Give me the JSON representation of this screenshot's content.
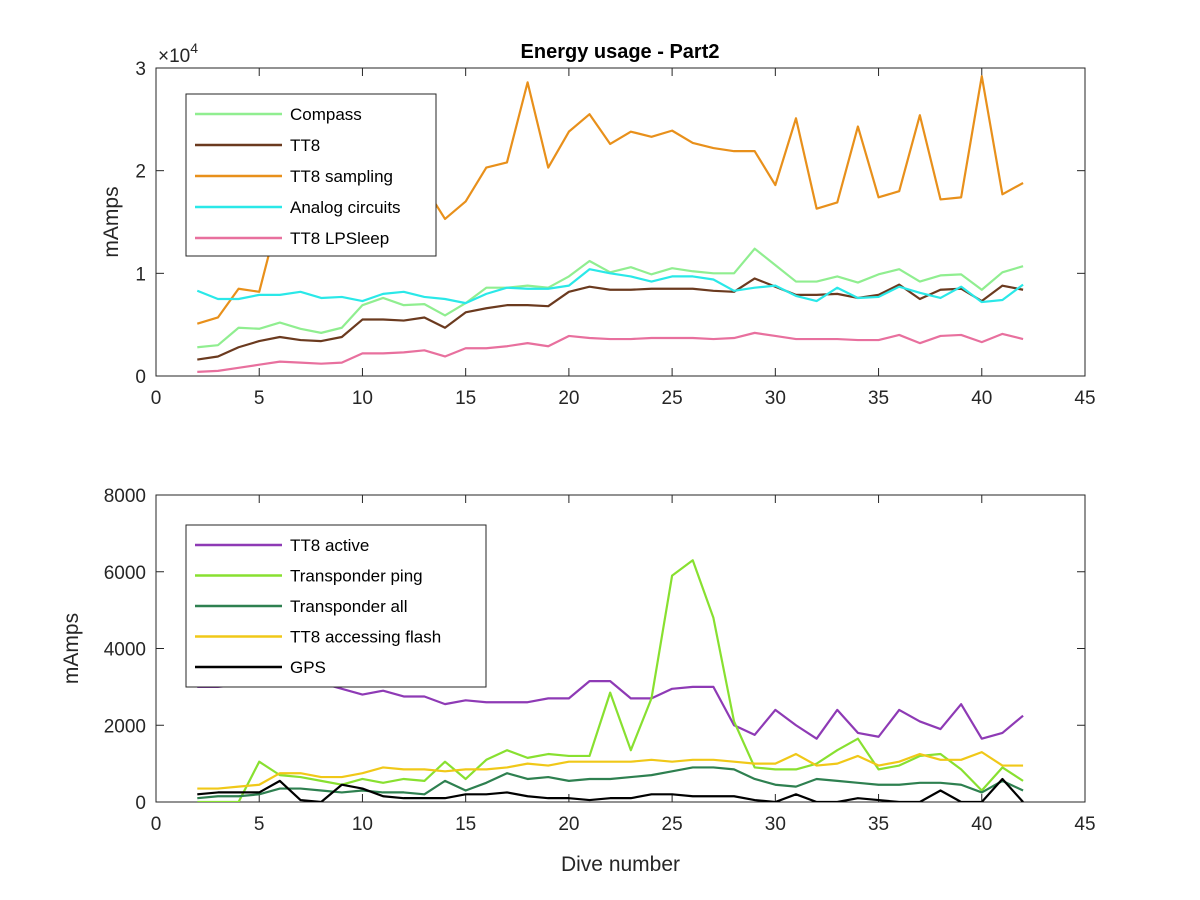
{
  "figure_title": "Energy usage - Part2",
  "chart_data": [
    {
      "type": "line",
      "title": "Energy usage - Part2",
      "xlabel": "",
      "ylabel": "mAmps",
      "xlim": [
        0,
        45
      ],
      "ylim": [
        0,
        30000
      ],
      "y_exponent_label": "×10",
      "y_exponent_power": "4",
      "xticks": [
        0,
        5,
        10,
        15,
        20,
        25,
        30,
        35,
        40,
        45
      ],
      "yticks": [
        0,
        10000,
        20000,
        30000
      ],
      "ytick_labels": [
        "0",
        "1",
        "2",
        "3"
      ],
      "grid": false,
      "legend_position": "top-left",
      "x": [
        2,
        3,
        4,
        5,
        6,
        7,
        8,
        9,
        10,
        11,
        12,
        13,
        14,
        15,
        16,
        17,
        18,
        19,
        20,
        21,
        22,
        23,
        24,
        25,
        26,
        27,
        28,
        29,
        30,
        31,
        32,
        33,
        34,
        35,
        36,
        37,
        38,
        39,
        40,
        41,
        42
      ],
      "series": [
        {
          "name": "Compass",
          "color": "#90ee90",
          "values": [
            2800,
            3000,
            4700,
            4600,
            5200,
            4600,
            4200,
            4700,
            6900,
            7600,
            6900,
            7000,
            5900,
            7100,
            8600,
            8600,
            8800,
            8600,
            9700,
            11200,
            10100,
            10600,
            9900,
            10500,
            10200,
            10000,
            10000,
            12400,
            10800,
            9200,
            9200,
            9700,
            9100,
            9900,
            10400,
            9200,
            9800,
            9900,
            8400,
            10100,
            10700
          ]
        },
        {
          "name": "TT8",
          "color": "#6b3a1f",
          "values": [
            1600,
            1900,
            2800,
            3400,
            3800,
            3500,
            3400,
            3800,
            5500,
            5500,
            5400,
            5700,
            4700,
            6200,
            6600,
            6900,
            6900,
            6800,
            8200,
            8700,
            8400,
            8400,
            8500,
            8500,
            8500,
            8300,
            8200,
            9500,
            8700,
            7900,
            7900,
            8000,
            7600,
            7900,
            8900,
            7500,
            8400,
            8500,
            7300,
            8800,
            8400
          ]
        },
        {
          "name": "TT8 sampling",
          "color": "#e8901b",
          "values": [
            5100,
            5700,
            8500,
            8200,
            16000,
            17500,
            18500,
            19000,
            17500,
            18000,
            16500,
            18500,
            15300,
            17000,
            20300,
            20800,
            28600,
            20300,
            23800,
            25500,
            22600,
            23800,
            23300,
            23900,
            22700,
            22200,
            21900,
            21900,
            18600,
            25100,
            16300,
            16900,
            24300,
            17400,
            18000,
            25400,
            17200,
            17400,
            29200,
            17700,
            18800
          ]
        },
        {
          "name": "Analog circuits",
          "color": "#2ae8e8",
          "values": [
            8300,
            7500,
            7500,
            7900,
            7900,
            8200,
            7600,
            7700,
            7300,
            8000,
            8200,
            7700,
            7500,
            7100,
            8000,
            8600,
            8500,
            8500,
            8800,
            10400,
            10000,
            9700,
            9200,
            9700,
            9700,
            9400,
            8300,
            8600,
            8800,
            7800,
            7300,
            8600,
            7600,
            7700,
            8700,
            8100,
            7600,
            8700,
            7200,
            7400,
            8900
          ]
        },
        {
          "name": "TT8 LPSleep",
          "color": "#e8709e",
          "values": [
            400,
            500,
            800,
            1100,
            1400,
            1300,
            1200,
            1300,
            2200,
            2200,
            2300,
            2500,
            1900,
            2700,
            2700,
            2900,
            3200,
            2900,
            3900,
            3700,
            3600,
            3600,
            3700,
            3700,
            3700,
            3600,
            3700,
            4200,
            3900,
            3600,
            3600,
            3600,
            3500,
            3500,
            4000,
            3200,
            3900,
            4000,
            3300,
            4100,
            3600
          ]
        }
      ]
    },
    {
      "type": "line",
      "title": "",
      "xlabel": "Dive number",
      "ylabel": "mAmps",
      "xlim": [
        0,
        45
      ],
      "ylim": [
        0,
        8000
      ],
      "xticks": [
        0,
        5,
        10,
        15,
        20,
        25,
        30,
        35,
        40,
        45
      ],
      "yticks": [
        0,
        2000,
        4000,
        6000,
        8000
      ],
      "ytick_labels": [
        "0",
        "2000",
        "4000",
        "6000",
        "8000"
      ],
      "grid": false,
      "legend_position": "top-left",
      "x": [
        2,
        3,
        4,
        5,
        6,
        7,
        8,
        9,
        10,
        11,
        12,
        13,
        14,
        15,
        16,
        17,
        18,
        19,
        20,
        21,
        22,
        23,
        24,
        25,
        26,
        27,
        28,
        29,
        30,
        31,
        32,
        33,
        34,
        35,
        36,
        37,
        38,
        39,
        40,
        41,
        42
      ],
      "series": [
        {
          "name": "TT8 active",
          "color": "#8e3ab5",
          "values": [
            3000,
            3000,
            3050,
            3100,
            3100,
            3100,
            3100,
            2950,
            2800,
            2900,
            2750,
            2750,
            2550,
            2650,
            2600,
            2600,
            2600,
            2700,
            2700,
            3150,
            3150,
            2700,
            2700,
            2950,
            3000,
            3000,
            2000,
            1750,
            2400,
            2000,
            1650,
            2400,
            1800,
            1700,
            2400,
            2100,
            1900,
            2550,
            1650,
            1800,
            2250
          ]
        },
        {
          "name": "Transponder ping",
          "color": "#88e030",
          "values": [
            0,
            0,
            0,
            1050,
            700,
            650,
            550,
            450,
            600,
            500,
            600,
            550,
            1050,
            600,
            1100,
            1350,
            1150,
            1250,
            1200,
            1200,
            2850,
            1350,
            2700,
            5900,
            6300,
            4800,
            2100,
            900,
            850,
            850,
            1000,
            1350,
            1650,
            850,
            950,
            1200,
            1250,
            850,
            300,
            900,
            550
          ]
        },
        {
          "name": "Transponder all",
          "color": "#2e8050",
          "values": [
            100,
            150,
            150,
            200,
            350,
            350,
            300,
            250,
            300,
            250,
            250,
            200,
            550,
            300,
            500,
            750,
            600,
            650,
            550,
            600,
            600,
            650,
            700,
            800,
            900,
            900,
            850,
            600,
            450,
            400,
            600,
            550,
            500,
            450,
            450,
            500,
            500,
            450,
            250,
            550,
            300
          ]
        },
        {
          "name": "TT8 accessing flash",
          "color": "#f0c818",
          "values": [
            350,
            350,
            400,
            450,
            750,
            750,
            650,
            650,
            750,
            900,
            850,
            850,
            800,
            850,
            850,
            900,
            1000,
            950,
            1050,
            1050,
            1050,
            1050,
            1100,
            1050,
            1100,
            1100,
            1050,
            1000,
            1000,
            1250,
            950,
            1000,
            1200,
            950,
            1050,
            1250,
            1100,
            1100,
            1300,
            950,
            950
          ]
        },
        {
          "name": "GPS",
          "color": "#000000",
          "values": [
            200,
            250,
            250,
            250,
            550,
            50,
            0,
            450,
            350,
            150,
            100,
            100,
            100,
            200,
            200,
            250,
            150,
            100,
            100,
            50,
            100,
            100,
            200,
            200,
            150,
            150,
            150,
            50,
            0,
            200,
            0,
            0,
            100,
            50,
            0,
            0,
            300,
            0,
            0,
            600,
            0
          ]
        }
      ]
    }
  ]
}
